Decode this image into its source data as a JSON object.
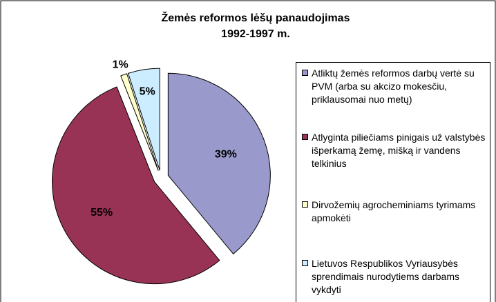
{
  "chart_data": {
    "type": "pie",
    "title": [
      "Žemės reformos lėšų panaudojimas",
      "1992-1997 m."
    ],
    "categories": [
      "Atliktų žemės reformos darbų vertė su PVM (arba su akcizo mokesčiu, priklausomai nuo metų)",
      "Atlyginta piliečiams pinigais už valstybės išperkamą žemę, mišką ir vandens telkinius",
      "Dirvožemių agrocheminiams tyrimams apmokėti",
      "Lietuvos Respublikos Vyriausybės sprendimais nurodytiems darbams vykdyti"
    ],
    "values": [
      39,
      55,
      1,
      5
    ],
    "value_labels": [
      "39%",
      "55%",
      "1%",
      "5%"
    ],
    "colors": [
      "#9999cc",
      "#993355",
      "#ffffcc",
      "#ccecff"
    ],
    "legend": "right"
  }
}
